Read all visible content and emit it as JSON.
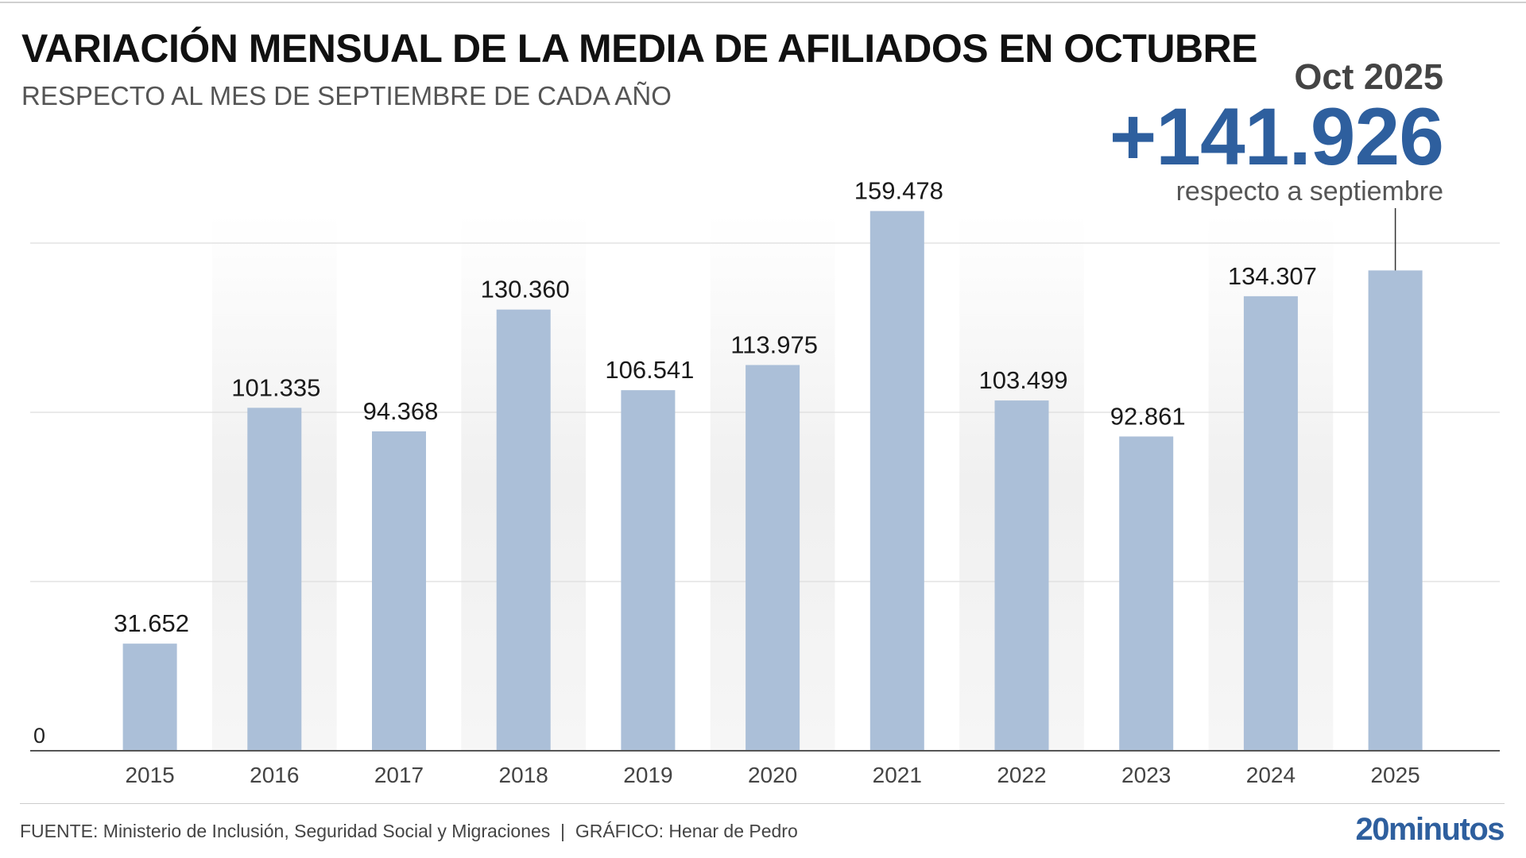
{
  "header": {
    "title": "VARIACIÓN MENSUAL DE LA MEDIA DE AFILIADOS EN OCTUBRE",
    "subtitle": "RESPECTO AL MES DE SEPTIEMBRE DE CADA AÑO"
  },
  "callout": {
    "date": "Oct 2025",
    "value": "+141.926",
    "label": "respecto a septiembre"
  },
  "footer": {
    "source": "FUENTE: Ministerio de Inclusión, Seguridad Social y Migraciones  |  GRÁFICO: Henar de Pedro",
    "logo": "20minutos"
  },
  "colors": {
    "bar": "#abbfd8",
    "accent": "#2e5f9e",
    "band": "#f0f0f0"
  },
  "chart_data": {
    "type": "bar",
    "categories": [
      "2015",
      "2016",
      "2017",
      "2018",
      "2019",
      "2020",
      "2021",
      "2022",
      "2023",
      "2024",
      "2025"
    ],
    "values": [
      31652,
      101335,
      94368,
      130360,
      106541,
      113975,
      159478,
      103499,
      92861,
      134307,
      141926
    ],
    "value_labels": [
      "31.652",
      "101.335",
      "94.368",
      "130.360",
      "106.541",
      "113.975",
      "159.478",
      "103.499",
      "92.861",
      "134.307",
      ""
    ],
    "ylim": [
      0,
      160000
    ],
    "y_tick_labels": [
      "0"
    ],
    "gridlines": [
      50000,
      100000,
      150000
    ],
    "grid": true,
    "legend": "none"
  }
}
